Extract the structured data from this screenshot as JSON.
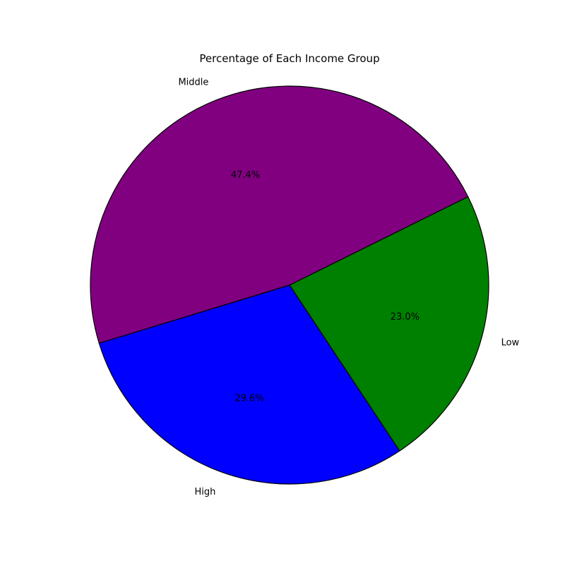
{
  "chart_data": {
    "type": "pie",
    "title": "Percentage of Each Income Group",
    "start_angle_deg": 197,
    "direction": "counterclockwise",
    "slices": [
      {
        "label": "High",
        "value": 29.6,
        "pct_label": "29.6%",
        "color": "#0000ff"
      },
      {
        "label": "Low",
        "value": 23.0,
        "pct_label": "23.0%",
        "color": "#008000"
      },
      {
        "label": "Middle",
        "value": 47.4,
        "pct_label": "47.4%",
        "color": "#800080"
      }
    ],
    "edge_color": "#000000",
    "legend": "none"
  }
}
